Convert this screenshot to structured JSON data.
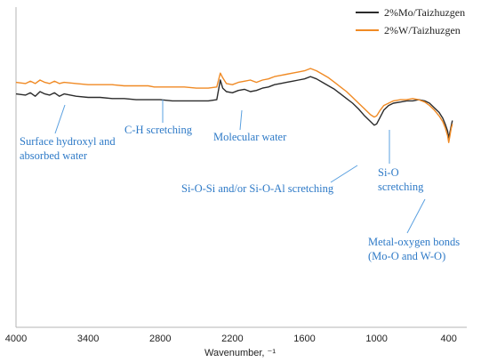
{
  "chart_data": {
    "type": "line",
    "xlabel": "Wavenumber, ⁻¹",
    "xlim": [
      4000,
      250
    ],
    "x_ticks": [
      4000,
      3400,
      2800,
      2200,
      1600,
      1000,
      400
    ],
    "x_tick_labels": [
      "4000",
      "3400",
      "2800",
      "2200",
      "1600",
      "1000",
      "400"
    ],
    "legend_position": "top-right",
    "series": [
      {
        "name": "2%Mo/Taizhuzgen",
        "color": "#2b2b2b",
        "points": [
          [
            4000,
            72
          ],
          [
            3920,
            73
          ],
          [
            3880,
            71
          ],
          [
            3840,
            74
          ],
          [
            3800,
            70
          ],
          [
            3760,
            72
          ],
          [
            3720,
            73
          ],
          [
            3680,
            71
          ],
          [
            3640,
            74
          ],
          [
            3600,
            72
          ],
          [
            3500,
            74
          ],
          [
            3400,
            75
          ],
          [
            3300,
            75
          ],
          [
            3200,
            76
          ],
          [
            3100,
            76
          ],
          [
            3000,
            77
          ],
          [
            2900,
            77
          ],
          [
            2800,
            77
          ],
          [
            2700,
            78
          ],
          [
            2600,
            78
          ],
          [
            2500,
            78
          ],
          [
            2400,
            78
          ],
          [
            2330,
            77
          ],
          [
            2300,
            60
          ],
          [
            2280,
            67
          ],
          [
            2250,
            70
          ],
          [
            2200,
            71
          ],
          [
            2150,
            69
          ],
          [
            2100,
            68
          ],
          [
            2050,
            70
          ],
          [
            2000,
            69
          ],
          [
            1950,
            67
          ],
          [
            1900,
            66
          ],
          [
            1850,
            64
          ],
          [
            1800,
            63
          ],
          [
            1750,
            62
          ],
          [
            1700,
            61
          ],
          [
            1650,
            60
          ],
          [
            1600,
            59
          ],
          [
            1550,
            57
          ],
          [
            1500,
            59
          ],
          [
            1450,
            62
          ],
          [
            1400,
            65
          ],
          [
            1350,
            68
          ],
          [
            1300,
            72
          ],
          [
            1250,
            76
          ],
          [
            1200,
            80
          ],
          [
            1150,
            85
          ],
          [
            1100,
            91
          ],
          [
            1050,
            96
          ],
          [
            1020,
            99
          ],
          [
            1000,
            98
          ],
          [
            970,
            92
          ],
          [
            940,
            86
          ],
          [
            900,
            82
          ],
          [
            860,
            80
          ],
          [
            800,
            79
          ],
          [
            750,
            78
          ],
          [
            700,
            78
          ],
          [
            650,
            77
          ],
          [
            600,
            78
          ],
          [
            560,
            80
          ],
          [
            520,
            84
          ],
          [
            480,
            88
          ],
          [
            450,
            93
          ],
          [
            430,
            98
          ],
          [
            410,
            104
          ],
          [
            400,
            110
          ],
          [
            390,
            105
          ],
          [
            380,
            100
          ],
          [
            370,
            95
          ]
        ]
      },
      {
        "name": "2%W/Taizhuzgen",
        "color": "#f08a24",
        "points": [
          [
            4000,
            62
          ],
          [
            3920,
            63
          ],
          [
            3880,
            61
          ],
          [
            3840,
            63
          ],
          [
            3800,
            60
          ],
          [
            3760,
            62
          ],
          [
            3720,
            63
          ],
          [
            3680,
            61
          ],
          [
            3640,
            63
          ],
          [
            3600,
            62
          ],
          [
            3500,
            63
          ],
          [
            3400,
            64
          ],
          [
            3300,
            64
          ],
          [
            3200,
            64
          ],
          [
            3100,
            65
          ],
          [
            3000,
            65
          ],
          [
            2900,
            65
          ],
          [
            2850,
            66
          ],
          [
            2800,
            66
          ],
          [
            2700,
            66
          ],
          [
            2600,
            66
          ],
          [
            2500,
            67
          ],
          [
            2400,
            67
          ],
          [
            2330,
            66
          ],
          [
            2300,
            54
          ],
          [
            2280,
            58
          ],
          [
            2250,
            63
          ],
          [
            2200,
            64
          ],
          [
            2150,
            62
          ],
          [
            2100,
            61
          ],
          [
            2050,
            60
          ],
          [
            2000,
            62
          ],
          [
            1950,
            60
          ],
          [
            1900,
            59
          ],
          [
            1850,
            57
          ],
          [
            1800,
            56
          ],
          [
            1750,
            55
          ],
          [
            1700,
            54
          ],
          [
            1650,
            53
          ],
          [
            1600,
            52
          ],
          [
            1550,
            50
          ],
          [
            1500,
            52
          ],
          [
            1450,
            55
          ],
          [
            1400,
            58
          ],
          [
            1350,
            62
          ],
          [
            1300,
            66
          ],
          [
            1250,
            70
          ],
          [
            1200,
            75
          ],
          [
            1150,
            80
          ],
          [
            1100,
            85
          ],
          [
            1050,
            90
          ],
          [
            1020,
            92
          ],
          [
            1000,
            91
          ],
          [
            970,
            86
          ],
          [
            940,
            82
          ],
          [
            900,
            80
          ],
          [
            860,
            78
          ],
          [
            800,
            77
          ],
          [
            750,
            77
          ],
          [
            700,
            76
          ],
          [
            650,
            77
          ],
          [
            600,
            79
          ],
          [
            560,
            82
          ],
          [
            520,
            86
          ],
          [
            480,
            91
          ],
          [
            450,
            96
          ],
          [
            430,
            101
          ],
          [
            410,
            108
          ],
          [
            400,
            114
          ],
          [
            390,
            108
          ],
          [
            380,
            102
          ],
          [
            370,
            98
          ]
        ]
      }
    ],
    "annotations": [
      {
        "lines": [
          "Surface hydroxyl and",
          "absorbed water"
        ],
        "x": 3600
      },
      {
        "lines": [
          "C-H scretching"
        ],
        "x": 2850
      },
      {
        "lines": [
          "Molecular water"
        ],
        "x": 1700
      },
      {
        "lines": [
          "Si-O-Si and/or Si-O-Al scretching"
        ],
        "x": 1020
      },
      {
        "lines": [
          "Si-O",
          "scretching"
        ],
        "x": 790
      },
      {
        "lines": [
          "Metal-oxygen bonds",
          "(Mo-O and W-O)"
        ],
        "x": 410
      }
    ]
  }
}
